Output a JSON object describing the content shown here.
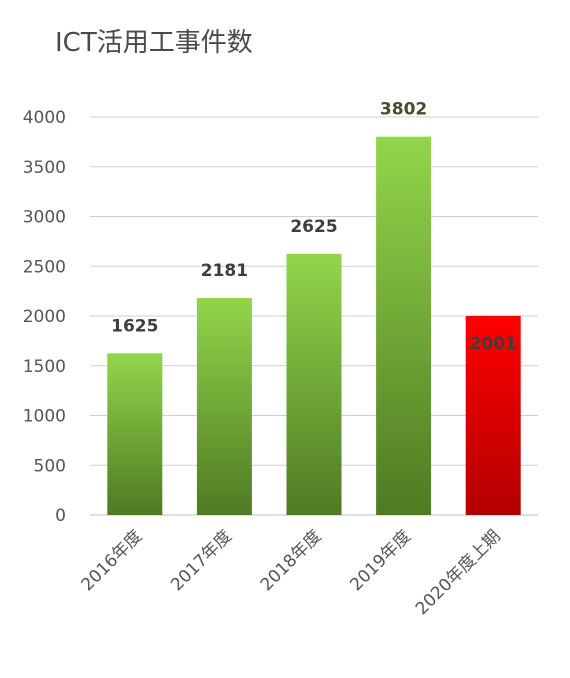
{
  "chart_data": {
    "type": "bar",
    "title": "ICT活用工事件数",
    "categories": [
      "2016年度",
      "2017年度",
      "2018年度",
      "2019年度",
      "2020年度上期"
    ],
    "values": [
      1625,
      2181,
      2625,
      3802,
      2001
    ],
    "ylim": [
      0,
      4000
    ],
    "yticks": [
      0,
      500,
      1000,
      1500,
      2000,
      2500,
      3000,
      3500,
      4000
    ],
    "grid": true,
    "legend": "none",
    "colors": {
      "green_top": "#92d64a",
      "green_bottom": "#4f7a23",
      "red_top": "#ff0000",
      "red_bottom": "#b30000",
      "grid": "#d0d0d0",
      "axis": "#bfbfbf",
      "label_dark": "#3d3d3d",
      "label_2019": "#4a4a2e"
    }
  }
}
